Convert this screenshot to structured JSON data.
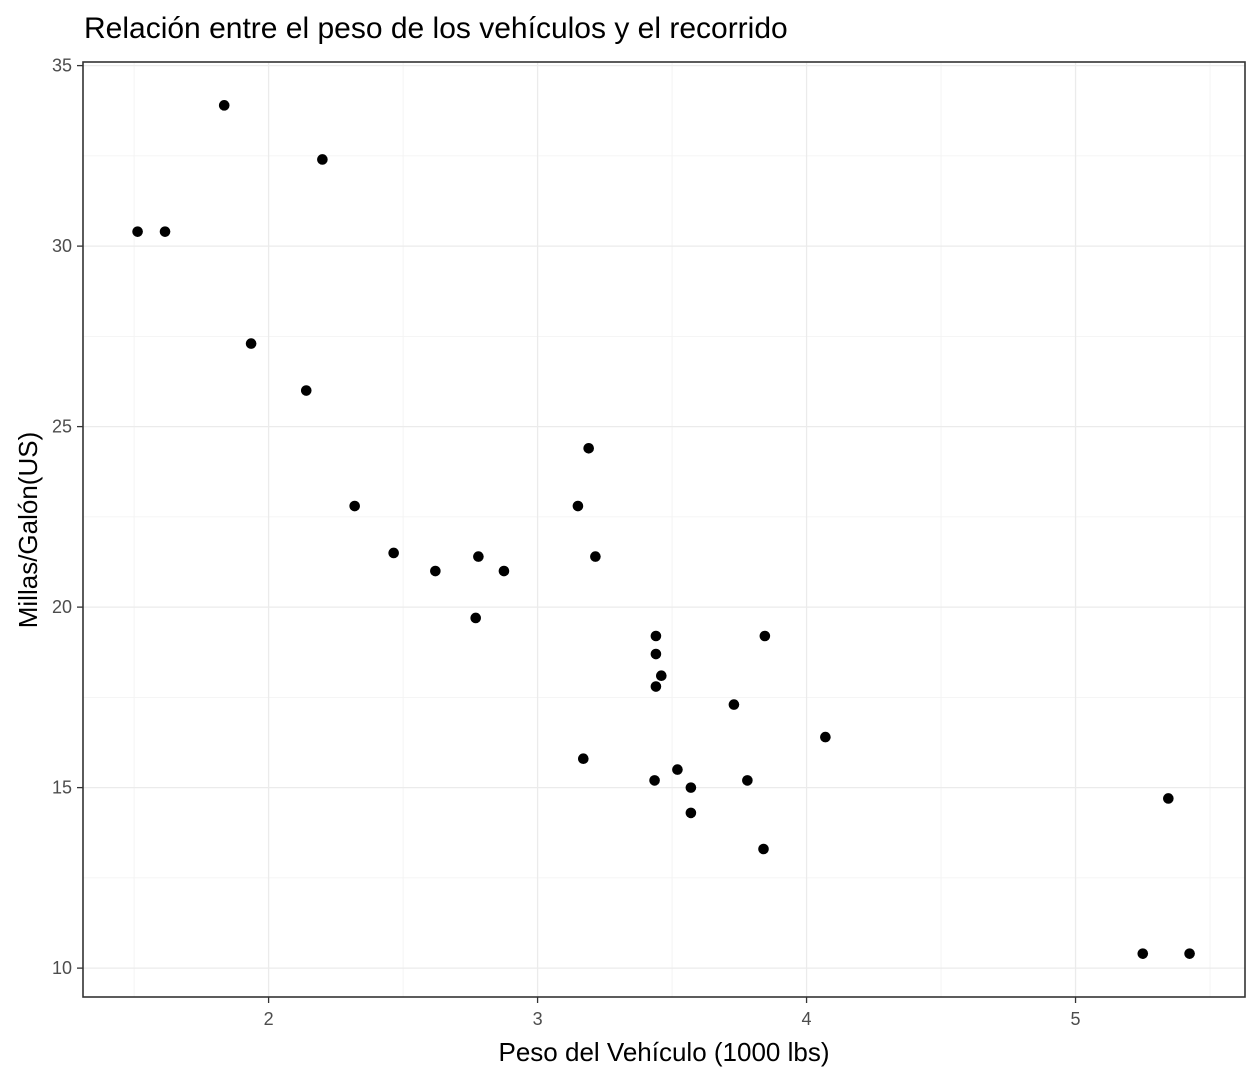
{
  "chart_data": {
    "type": "scatter",
    "title": "Relación entre el peso de los vehículos y el recorrido",
    "xlabel": "Peso del Vehículo (1000 lbs)",
    "ylabel": "Millas/Galón(US)",
    "xlim": [
      1.31,
      5.63
    ],
    "ylim": [
      9.2,
      35.1
    ],
    "x_ticks": [
      2,
      3,
      4,
      5
    ],
    "y_ticks": [
      10,
      15,
      20,
      25,
      30,
      35
    ],
    "x_tick_labels": [
      "2",
      "3",
      "4",
      "5"
    ],
    "y_tick_labels": [
      "10",
      "15",
      "20",
      "25",
      "30",
      "35"
    ],
    "grid": true,
    "point_color": "#000000",
    "points": [
      {
        "x": 1.513,
        "y": 30.4
      },
      {
        "x": 1.615,
        "y": 30.4
      },
      {
        "x": 1.835,
        "y": 33.9
      },
      {
        "x": 1.935,
        "y": 27.3
      },
      {
        "x": 2.14,
        "y": 26.0
      },
      {
        "x": 2.2,
        "y": 32.4
      },
      {
        "x": 2.32,
        "y": 22.8
      },
      {
        "x": 2.465,
        "y": 21.5
      },
      {
        "x": 2.62,
        "y": 21.0
      },
      {
        "x": 2.77,
        "y": 19.7
      },
      {
        "x": 2.78,
        "y": 21.4
      },
      {
        "x": 2.875,
        "y": 21.0
      },
      {
        "x": 3.15,
        "y": 22.8
      },
      {
        "x": 3.17,
        "y": 15.8
      },
      {
        "x": 3.19,
        "y": 24.4
      },
      {
        "x": 3.215,
        "y": 21.4
      },
      {
        "x": 3.435,
        "y": 15.2
      },
      {
        "x": 3.44,
        "y": 18.7
      },
      {
        "x": 3.44,
        "y": 19.2
      },
      {
        "x": 3.44,
        "y": 17.8
      },
      {
        "x": 3.46,
        "y": 18.1
      },
      {
        "x": 3.52,
        "y": 15.5
      },
      {
        "x": 3.57,
        "y": 14.3
      },
      {
        "x": 3.57,
        "y": 15.0
      },
      {
        "x": 3.73,
        "y": 17.3
      },
      {
        "x": 3.78,
        "y": 15.2
      },
      {
        "x": 3.84,
        "y": 13.3
      },
      {
        "x": 3.845,
        "y": 19.2
      },
      {
        "x": 4.07,
        "y": 16.4
      },
      {
        "x": 5.25,
        "y": 10.4
      },
      {
        "x": 5.345,
        "y": 14.7
      },
      {
        "x": 5.424,
        "y": 10.4
      }
    ]
  }
}
